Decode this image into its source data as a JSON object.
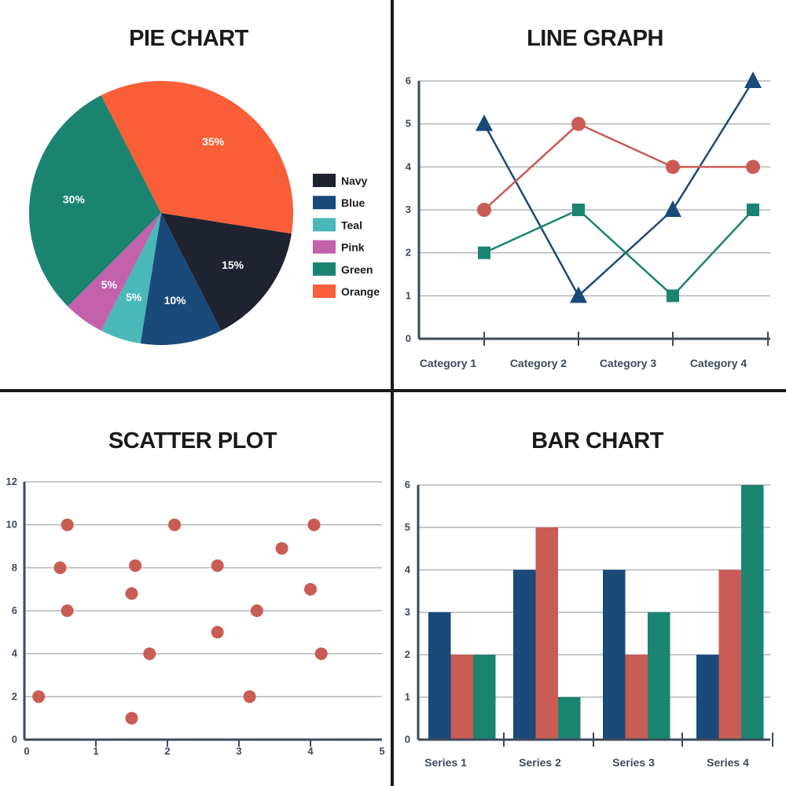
{
  "colors": {
    "navy": "#1f2330",
    "blue": "#194a7a",
    "teal": "#4ab8b8",
    "pink": "#c361ad",
    "green": "#1a8471",
    "orange": "#f95e38",
    "red": "#c95c55",
    "axis": "#3e4a59",
    "grid": "#b3b5b7",
    "text": "#3e4a59",
    "divider": "#1a1a1a"
  },
  "chart_data": [
    {
      "type": "pie",
      "title": "PIE CHART",
      "slices": [
        {
          "name": "Navy",
          "value": 15,
          "label": "15%",
          "color": "#1f2330"
        },
        {
          "name": "Blue",
          "value": 10,
          "label": "10%",
          "color": "#194a7a"
        },
        {
          "name": "Teal",
          "value": 5,
          "label": "5%",
          "color": "#4ab8b8"
        },
        {
          "name": "Pink",
          "value": 5,
          "label": "5%",
          "color": "#c361ad"
        },
        {
          "name": "Green",
          "value": 30,
          "label": "30%",
          "color": "#1a8471"
        },
        {
          "name": "Orange",
          "value": 35,
          "label": "35%",
          "color": "#f95e38"
        }
      ],
      "legend": [
        "Navy",
        "Blue",
        "Teal",
        "Pink",
        "Green",
        "Orange"
      ],
      "legend_position": "right"
    },
    {
      "type": "line",
      "title": "LINE GRAPH",
      "categories": [
        "Category 1",
        "Category 2",
        "Category 3",
        "Category 4"
      ],
      "ylim": [
        0,
        6
      ],
      "yticks": [
        0,
        1,
        2,
        3,
        4,
        5,
        6
      ],
      "grid": true,
      "series": [
        {
          "values": [
            5,
            1,
            3,
            6
          ],
          "color": "#194a7a",
          "marker": "triangle"
        },
        {
          "values": [
            3,
            5,
            4,
            4
          ],
          "color": "#c95c55",
          "marker": "circle"
        },
        {
          "values": [
            2,
            3,
            1,
            3
          ],
          "color": "#1a8471",
          "marker": "square"
        }
      ]
    },
    {
      "type": "scatter",
      "title": "SCATTER PLOT",
      "xlim": [
        0,
        5
      ],
      "ylim": [
        0,
        12
      ],
      "xticks": [
        0,
        1,
        2,
        3,
        4,
        5
      ],
      "yticks": [
        0,
        2,
        4,
        6,
        8,
        10,
        12
      ],
      "grid": true,
      "color": "#c95c55",
      "points": [
        {
          "x": 0.2,
          "y": 2
        },
        {
          "x": 0.5,
          "y": 8
        },
        {
          "x": 0.6,
          "y": 10
        },
        {
          "x": 0.6,
          "y": 6
        },
        {
          "x": 1.5,
          "y": 1
        },
        {
          "x": 1.5,
          "y": 6.8
        },
        {
          "x": 1.55,
          "y": 8.1
        },
        {
          "x": 1.75,
          "y": 4
        },
        {
          "x": 2.1,
          "y": 10
        },
        {
          "x": 2.7,
          "y": 5
        },
        {
          "x": 2.7,
          "y": 8.1
        },
        {
          "x": 3.15,
          "y": 2
        },
        {
          "x": 3.25,
          "y": 6
        },
        {
          "x": 3.6,
          "y": 8.9
        },
        {
          "x": 4.0,
          "y": 7
        },
        {
          "x": 4.05,
          "y": 10
        },
        {
          "x": 4.15,
          "y": 4
        }
      ]
    },
    {
      "type": "bar",
      "title": "BAR CHART",
      "categories": [
        "Series 1",
        "Series 2",
        "Series 3",
        "Series 4"
      ],
      "ylim": [
        0,
        6
      ],
      "yticks": [
        0,
        1,
        2,
        3,
        4,
        5,
        6
      ],
      "grid": true,
      "series": [
        {
          "values": [
            3,
            4,
            4,
            2
          ],
          "color": "#194a7a"
        },
        {
          "values": [
            2,
            5,
            2,
            4
          ],
          "color": "#c95c55"
        },
        {
          "values": [
            2,
            1,
            3,
            6
          ],
          "color": "#1a8471"
        }
      ]
    }
  ]
}
